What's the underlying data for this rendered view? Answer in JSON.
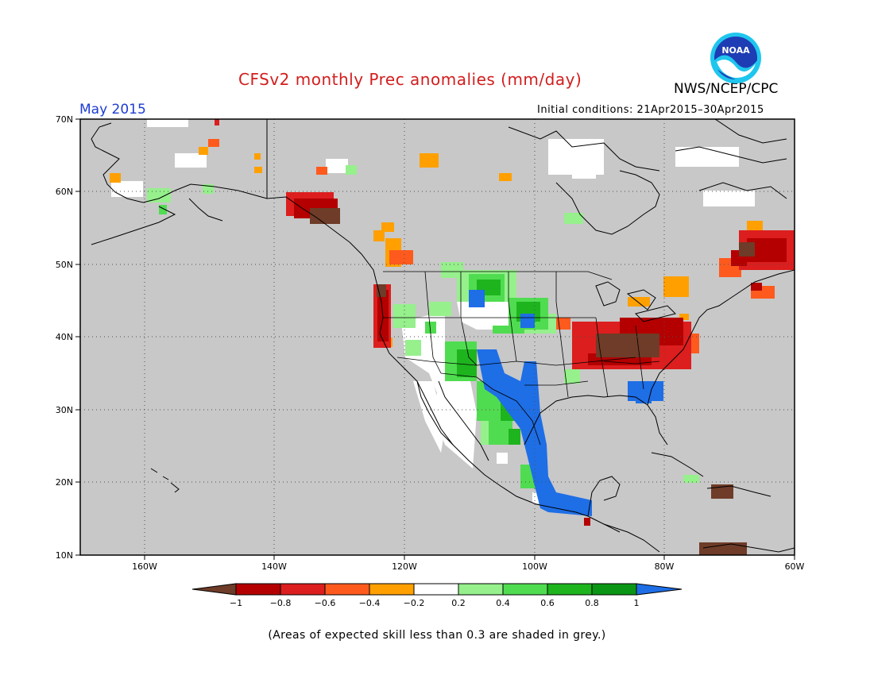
{
  "title": "CFSv2 monthly Prec anomalies (mm/day)",
  "month_label": "May 2015",
  "agency": "NWS/NCEP/CPC",
  "logo_text": "NOAA",
  "initial_conditions": "Initial conditions: 21Apr2015–30Apr2015",
  "footnote": "(Areas of expected skill less than 0.3 are shaded in grey.)",
  "map": {
    "lon_range": [
      -170,
      -60
    ],
    "lat_range": [
      10,
      70
    ],
    "lon_ticks": [
      "160W",
      "140W",
      "120W",
      "100W",
      "80W",
      "60W"
    ],
    "lat_ticks": [
      "70N",
      "60N",
      "50N",
      "40N",
      "30N",
      "20N",
      "10N"
    ],
    "background_color": "#c8c8c8",
    "grid": "dotted"
  },
  "colorbar": {
    "labels": [
      "−1",
      "−0.8",
      "−0.6",
      "−0.4",
      "−0.2",
      "0.2",
      "0.4",
      "0.6",
      "0.8",
      "1"
    ],
    "colors": [
      "#6e3c28",
      "#b40000",
      "#dc1e1e",
      "#ff5a1e",
      "#ffa000",
      "#ffffff",
      "#96f08c",
      "#50dc50",
      "#1eb41e",
      "#0a9614",
      "#1e6ee6"
    ]
  }
}
